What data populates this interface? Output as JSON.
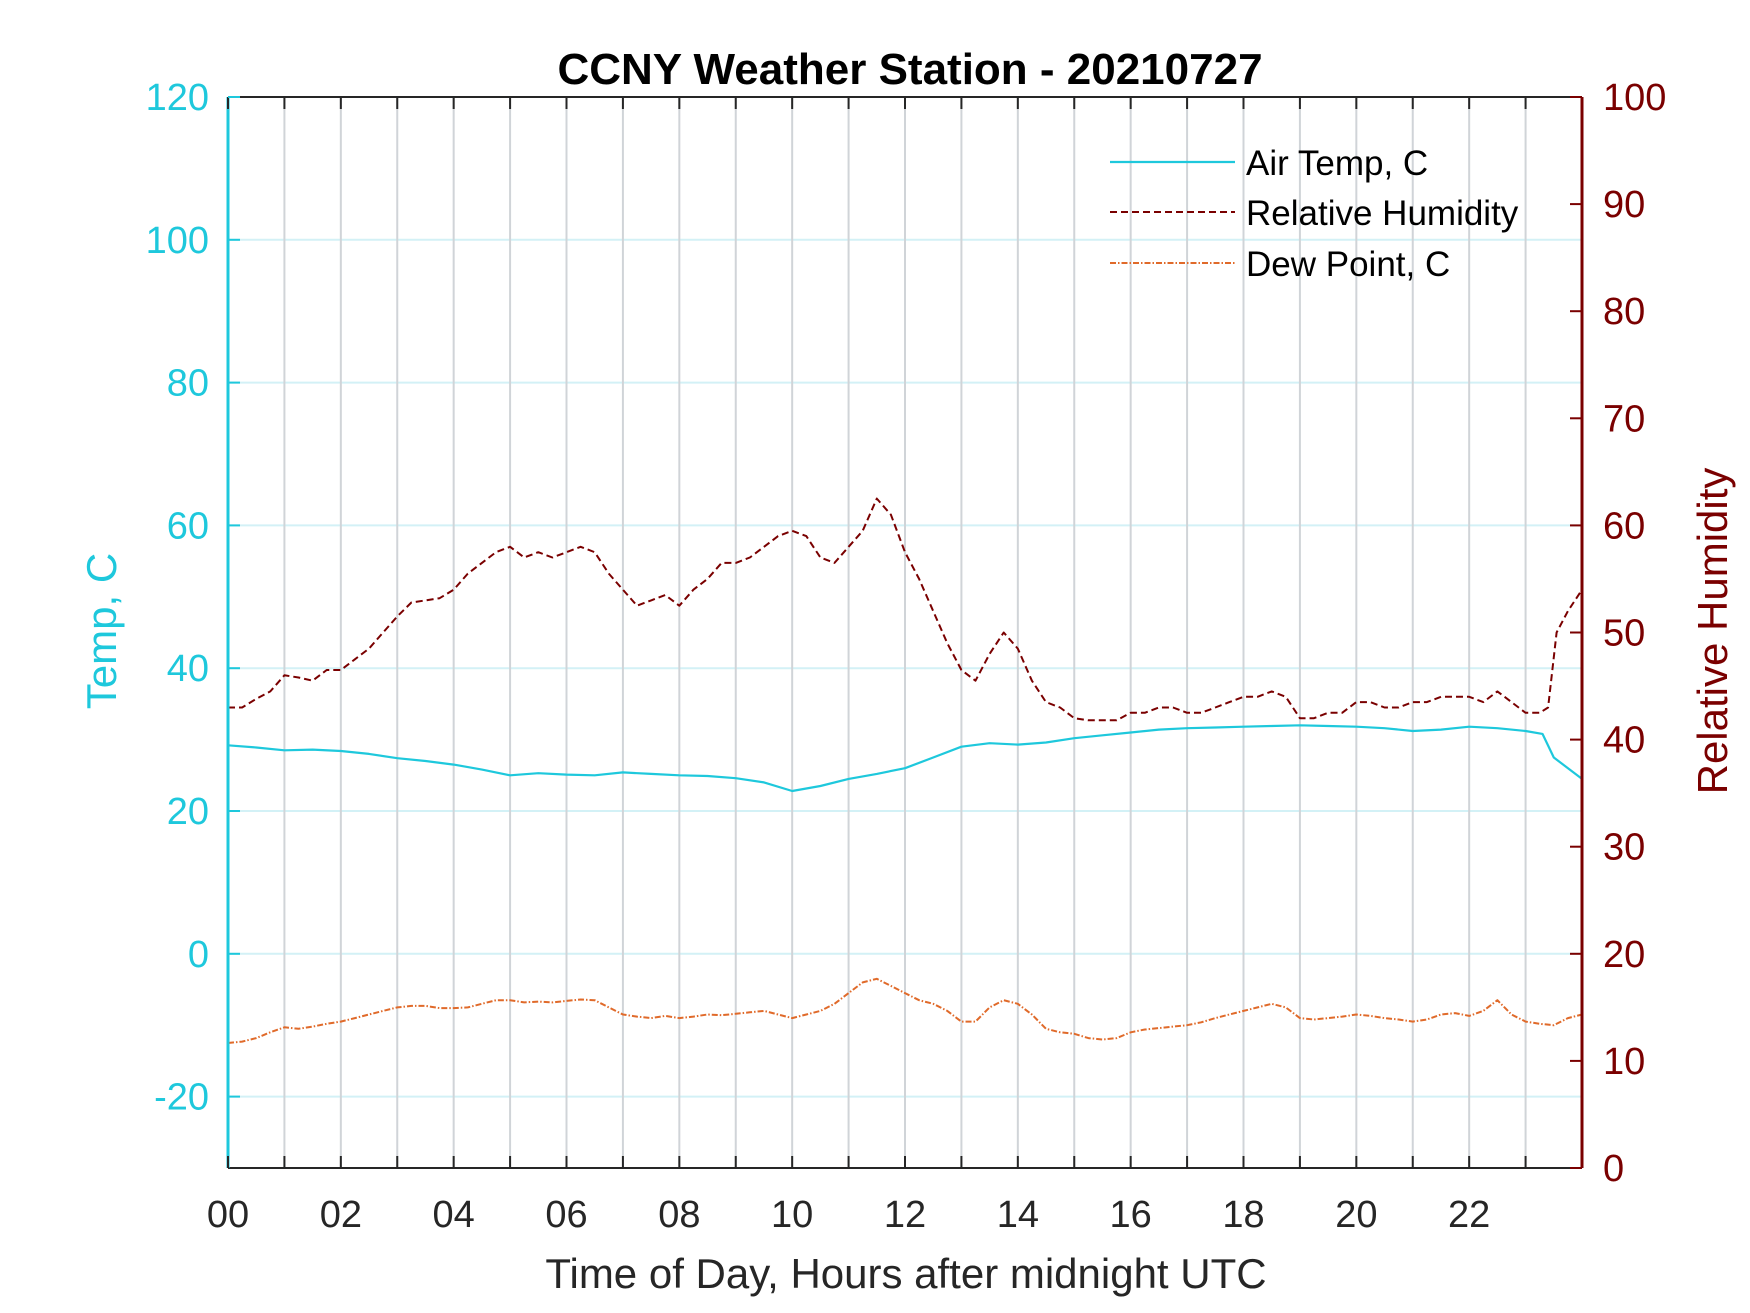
{
  "colors": {
    "air_temp": "#1ec8dc",
    "humidity": "#7a0000",
    "dew_point": "#e06a2a",
    "vgrid": "#d0d4d8",
    "hgrid": "#d3f1f6",
    "axis_dark": "#262626"
  },
  "chart_data": {
    "type": "line",
    "title": "CCNY Weather Station - 20210727",
    "xlabel": "Time of Day, Hours after midnight UTC",
    "ylabel_left": "Temp, C",
    "ylabel_right": "Relative Humidity",
    "xlim": [
      0,
      24
    ],
    "ylim_left": [
      -30,
      120
    ],
    "ylim_right": [
      0,
      100
    ],
    "x_tick_labels": [
      "00",
      "02",
      "04",
      "06",
      "08",
      "10",
      "12",
      "14",
      "16",
      "18",
      "20",
      "22"
    ],
    "y_left_tick_labels": [
      "-20",
      "0",
      "20",
      "40",
      "60",
      "80",
      "100",
      "120"
    ],
    "y_right_tick_labels": [
      "0",
      "10",
      "20",
      "30",
      "40",
      "50",
      "60",
      "70",
      "80",
      "90",
      "100"
    ],
    "grid": "on",
    "legend_position": "top-right",
    "series": [
      {
        "name": "Air Temp, C",
        "axis": "left",
        "style": "solid",
        "x": [
          0,
          0.5,
          1,
          1.5,
          2,
          2.5,
          3,
          3.5,
          4,
          4.5,
          5,
          5.5,
          6,
          6.5,
          7,
          7.5,
          8,
          8.5,
          9,
          9.5,
          10,
          10.5,
          11,
          11.5,
          12,
          12.5,
          13,
          13.5,
          14,
          14.5,
          15,
          15.5,
          16,
          16.5,
          17,
          17.5,
          18,
          18.5,
          19,
          19.5,
          20,
          20.5,
          21,
          21.5,
          22,
          22.5,
          23,
          23.3,
          23.5,
          24
        ],
        "y": [
          29.2,
          28.9,
          28.5,
          28.6,
          28.4,
          28.0,
          27.4,
          27.0,
          26.5,
          25.8,
          25.0,
          25.3,
          25.1,
          25.0,
          25.4,
          25.2,
          25.0,
          24.9,
          24.6,
          24.0,
          22.8,
          23.5,
          24.5,
          25.2,
          26.0,
          27.5,
          29.0,
          29.5,
          29.3,
          29.6,
          30.2,
          30.6,
          31.0,
          31.4,
          31.6,
          31.7,
          31.8,
          31.9,
          32.0,
          31.9,
          31.8,
          31.6,
          31.2,
          31.4,
          31.8,
          31.6,
          31.2,
          30.8,
          27.5,
          24.5
        ]
      },
      {
        "name": "Relative Humidity",
        "axis": "right",
        "style": "dashed",
        "x": [
          0,
          0.25,
          0.5,
          0.75,
          1,
          1.25,
          1.5,
          1.75,
          2,
          2.25,
          2.5,
          2.75,
          3,
          3.25,
          3.5,
          3.75,
          4,
          4.25,
          4.5,
          4.75,
          5,
          5.25,
          5.5,
          5.75,
          6,
          6.25,
          6.5,
          6.75,
          7,
          7.25,
          7.5,
          7.75,
          8,
          8.25,
          8.5,
          8.75,
          9,
          9.25,
          9.5,
          9.75,
          10,
          10.25,
          10.5,
          10.75,
          11,
          11.25,
          11.5,
          11.75,
          12,
          12.25,
          12.5,
          12.75,
          13,
          13.25,
          13.5,
          13.75,
          14,
          14.25,
          14.5,
          14.75,
          15,
          15.25,
          15.5,
          15.75,
          16,
          16.25,
          16.5,
          16.75,
          17,
          17.25,
          17.5,
          17.75,
          18,
          18.25,
          18.5,
          18.75,
          19,
          19.25,
          19.5,
          19.75,
          20,
          20.25,
          20.5,
          20.75,
          21,
          21.25,
          21.5,
          21.75,
          22,
          22.25,
          22.5,
          22.75,
          23,
          23.25,
          23.4,
          23.55,
          23.75,
          24
        ],
        "y": [
          43.0,
          43.0,
          43.8,
          44.5,
          46.0,
          45.8,
          45.5,
          46.5,
          46.5,
          47.5,
          48.5,
          50.0,
          51.5,
          52.8,
          53.0,
          53.2,
          54.0,
          55.5,
          56.5,
          57.5,
          58.0,
          57.0,
          57.5,
          57.0,
          57.5,
          58.0,
          57.5,
          55.5,
          54.0,
          52.5,
          53.0,
          53.5,
          52.5,
          54.0,
          55.0,
          56.5,
          56.5,
          57.0,
          58.0,
          59.0,
          59.5,
          59.0,
          57.0,
          56.5,
          58.0,
          59.5,
          62.5,
          61.0,
          57.5,
          55.0,
          52.0,
          49.0,
          46.5,
          45.5,
          48.0,
          50.0,
          48.5,
          45.5,
          43.5,
          43.0,
          42.0,
          41.8,
          41.8,
          41.8,
          42.5,
          42.5,
          43.0,
          43.0,
          42.5,
          42.5,
          43.0,
          43.5,
          44.0,
          44.0,
          44.5,
          44.0,
          42.0,
          42.0,
          42.5,
          42.5,
          43.5,
          43.5,
          43.0,
          43.0,
          43.5,
          43.5,
          44.0,
          44.0,
          44.0,
          43.5,
          44.5,
          43.5,
          42.5,
          42.5,
          43.0,
          50.0,
          52.0,
          54.0
        ]
      },
      {
        "name": "Dew Point, C",
        "axis": "left",
        "style": "dash-dot",
        "x": [
          0,
          0.25,
          0.5,
          0.75,
          1,
          1.25,
          1.5,
          1.75,
          2,
          2.25,
          2.5,
          2.75,
          3,
          3.25,
          3.5,
          3.75,
          4,
          4.25,
          4.5,
          4.75,
          5,
          5.25,
          5.5,
          5.75,
          6,
          6.25,
          6.5,
          6.75,
          7,
          7.25,
          7.5,
          7.75,
          8,
          8.25,
          8.5,
          8.75,
          9,
          9.25,
          9.5,
          9.75,
          10,
          10.25,
          10.5,
          10.75,
          11,
          11.25,
          11.5,
          11.75,
          12,
          12.25,
          12.5,
          12.75,
          13,
          13.25,
          13.5,
          13.75,
          14,
          14.25,
          14.5,
          14.75,
          15,
          15.25,
          15.5,
          15.75,
          16,
          16.25,
          16.5,
          16.75,
          17,
          17.25,
          17.5,
          17.75,
          18,
          18.25,
          18.5,
          18.75,
          19,
          19.25,
          19.5,
          19.75,
          20,
          20.25,
          20.5,
          20.75,
          21,
          21.25,
          21.5,
          21.75,
          22,
          22.25,
          22.5,
          22.75,
          23,
          23.25,
          23.5,
          23.75,
          24
        ],
        "y": [
          -12.5,
          -12.3,
          -11.8,
          -11.0,
          -10.3,
          -10.5,
          -10.2,
          -9.8,
          -9.5,
          -9.0,
          -8.5,
          -8.0,
          -7.5,
          -7.3,
          -7.3,
          -7.6,
          -7.6,
          -7.5,
          -7.0,
          -6.5,
          -6.5,
          -6.8,
          -6.7,
          -6.8,
          -6.6,
          -6.4,
          -6.5,
          -7.5,
          -8.5,
          -8.8,
          -9.0,
          -8.7,
          -9.0,
          -8.8,
          -8.5,
          -8.6,
          -8.4,
          -8.2,
          -8.0,
          -8.5,
          -9.0,
          -8.5,
          -8.0,
          -7.0,
          -5.5,
          -4.0,
          -3.5,
          -4.5,
          -5.5,
          -6.5,
          -7.0,
          -8.0,
          -9.5,
          -9.5,
          -7.5,
          -6.5,
          -7.0,
          -8.5,
          -10.5,
          -11.0,
          -11.2,
          -11.8,
          -12.0,
          -11.8,
          -11.0,
          -10.6,
          -10.4,
          -10.2,
          -10.0,
          -9.6,
          -9.0,
          -8.5,
          -8.0,
          -7.5,
          -7.0,
          -7.5,
          -9.0,
          -9.2,
          -9.0,
          -8.8,
          -8.5,
          -8.7,
          -9.0,
          -9.2,
          -9.5,
          -9.2,
          -8.5,
          -8.3,
          -8.7,
          -8.0,
          -6.5,
          -8.5,
          -9.5,
          -9.8,
          -10.0,
          -9.0,
          -8.5
        ]
      }
    ]
  },
  "legend": {
    "items": [
      {
        "label": "Air Temp, C"
      },
      {
        "label": "Relative Humidity"
      },
      {
        "label": "Dew Point, C"
      }
    ]
  }
}
